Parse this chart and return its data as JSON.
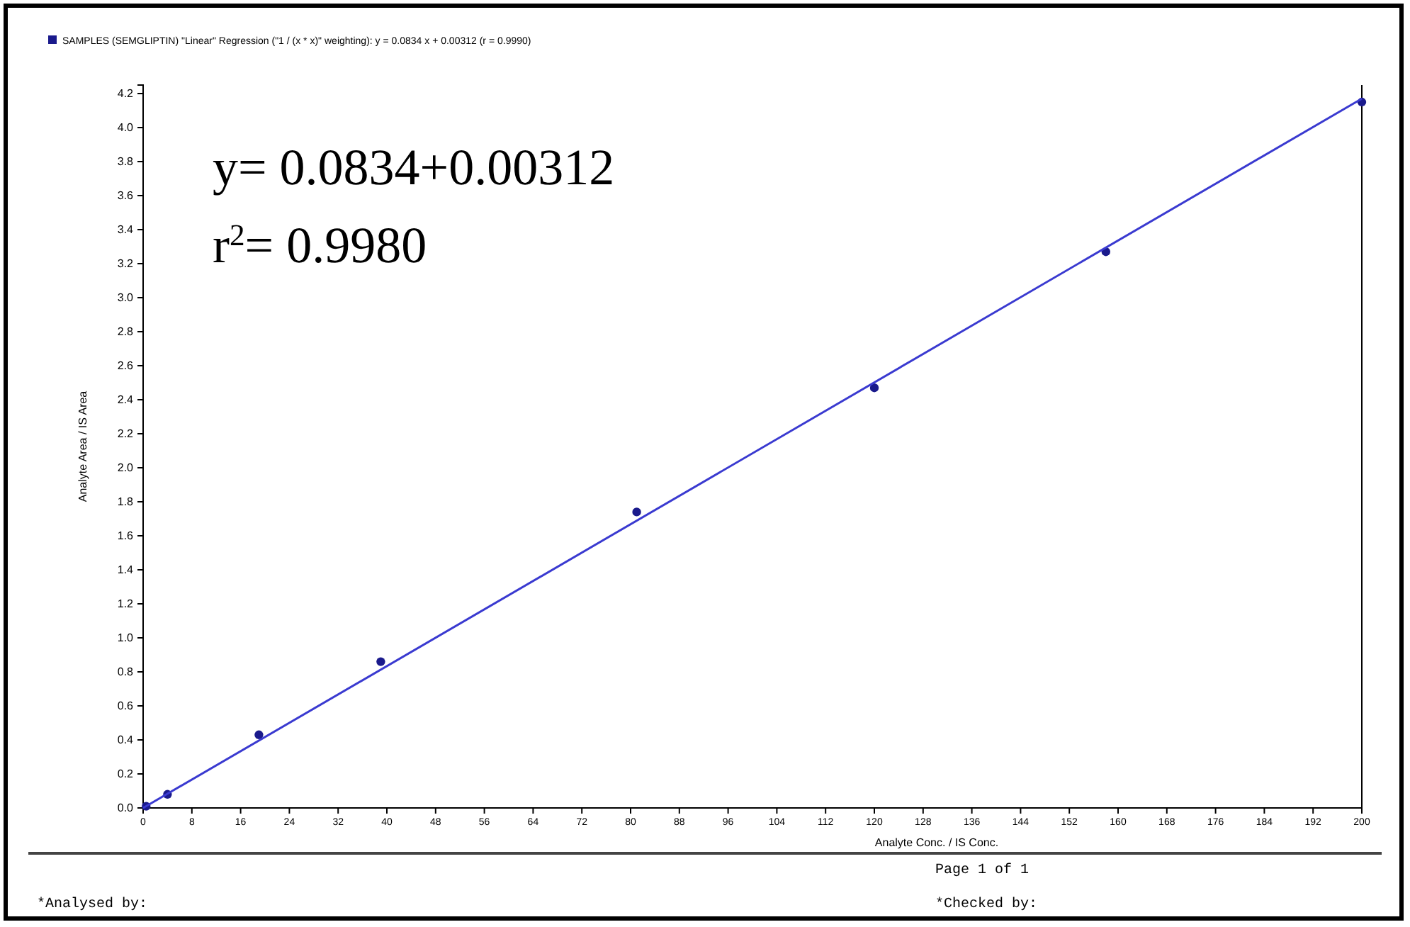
{
  "chart_data": {
    "type": "scatter",
    "xlabel": "Analyte Conc. / IS Conc.",
    "ylabel": "Analyte Area / IS Area",
    "xlim": [
      0,
      200
    ],
    "ylim": [
      0,
      4.25
    ],
    "xticks": [
      0,
      8,
      16,
      24,
      32,
      40,
      48,
      56,
      64,
      72,
      80,
      88,
      96,
      104,
      112,
      120,
      128,
      136,
      144,
      152,
      160,
      168,
      176,
      184,
      192,
      200
    ],
    "yticks": [
      {
        "value": 0,
        "label": "0.0"
      },
      {
        "value": 0.2,
        "label": "0.2"
      },
      {
        "value": 0.4,
        "label": "0.4"
      },
      {
        "value": 0.6,
        "label": "0.6"
      },
      {
        "value": 0.8,
        "label": "0.8"
      },
      {
        "value": 1,
        "label": "1.0"
      },
      {
        "value": 1.2,
        "label": "1.2"
      },
      {
        "value": 1.4,
        "label": "1.4"
      },
      {
        "value": 1.6,
        "label": "1.6"
      },
      {
        "value": 1.8,
        "label": "1.8"
      },
      {
        "value": 2,
        "label": "2.0"
      },
      {
        "value": 2.2,
        "label": "2.2"
      },
      {
        "value": 2.4,
        "label": "2.4"
      },
      {
        "value": 2.6,
        "label": "2.6"
      },
      {
        "value": 2.8,
        "label": "2.8"
      },
      {
        "value": 3,
        "label": "3.0"
      },
      {
        "value": 3.2,
        "label": "3.2"
      },
      {
        "value": 3.4,
        "label": "3.4"
      },
      {
        "value": 3.6,
        "label": "3.6"
      },
      {
        "value": 3.8,
        "label": "3.8"
      },
      {
        "value": 4,
        "label": "4.0"
      },
      {
        "value": 4.2,
        "label": "4.2"
      }
    ],
    "grid": false,
    "legend": "top left",
    "marker": "circle",
    "series": [
      {
        "name": "SAMPLES (SEMGLIPTIN) \"Linear\" Regression (\"1 / (x * x)\" weighting): y = 0.0834 x + 0.00312 (r = 0.9990)",
        "color": "#1a1a8c",
        "x": [
          0.5,
          4,
          19,
          39,
          81,
          120,
          158,
          200
        ],
        "values": [
          0.01,
          0.08,
          0.43,
          0.86,
          1.74,
          2.47,
          3.27,
          4.15
        ]
      },
      {
        "type": "line",
        "color": "#3a3ad0",
        "line_style": "solid",
        "marker": "none",
        "x": [
          0,
          200
        ],
        "values": [
          0.0,
          4.17
        ]
      }
    ],
    "annotations": [
      "y= 0.0834+0.00312",
      "r$^{2}$= 0.9980",
      "Page 1 of 1",
      "*Analysed by:",
      "*Checked by:"
    ]
  }
}
